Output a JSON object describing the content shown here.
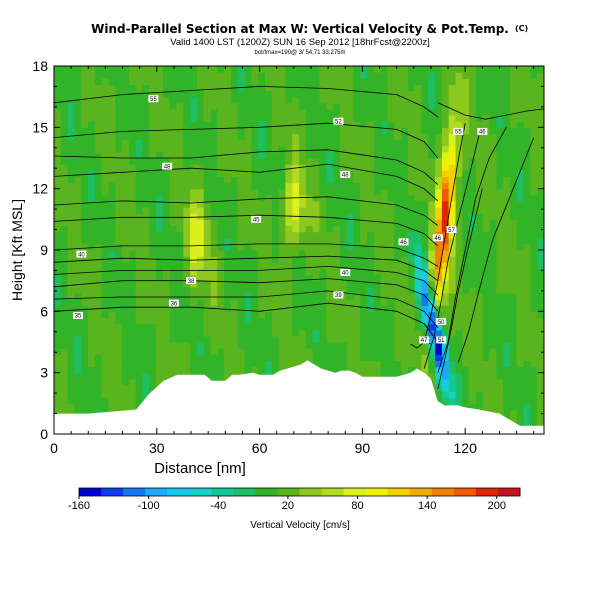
{
  "chart_data": {
    "type": "heatmap",
    "title": "Wind-Parallel Section at Max W: Vertical Velocity & Pot.Temp.",
    "title_mark": "(C)",
    "subtitle": "Valid 1400 LST (1200Z) SUN 16 Sep 2012 [18hrFcst@2200z]",
    "subsubtitle": "bot/tmax=190@ 3/ 54,71 33,275m",
    "xlabel": "Distance [nm]",
    "ylabel": "Height [Kft MSL]",
    "xlim": [
      0,
      143
    ],
    "ylim": [
      0,
      18
    ],
    "xticks": [
      0,
      30,
      60,
      90,
      120
    ],
    "yticks": [
      0,
      3,
      6,
      9,
      12,
      15,
      18
    ],
    "colorbar": {
      "label": "Vertical Velocity [cm/s]",
      "range": [
        -160,
        220
      ],
      "tick_values": [
        -160,
        -100,
        -40,
        20,
        80,
        140,
        200
      ],
      "tick_labels": [
        "-160",
        "-100",
        "-40",
        "20",
        "80",
        "140",
        "200"
      ],
      "colors": [
        "#0000d2",
        "#0a3cf0",
        "#1478f5",
        "#1eaaf5",
        "#14c8f0",
        "#14d2c8",
        "#14c896",
        "#1ebe64",
        "#32b428",
        "#5ab41e",
        "#8cc81e",
        "#b4dc1e",
        "#dcf01e",
        "#f0f000",
        "#f0d200",
        "#f0aa00",
        "#f08200",
        "#f05a00",
        "#e02800",
        "#c8141e"
      ]
    },
    "terrain_profile": {
      "x": [
        0,
        10,
        24,
        26,
        28,
        30,
        32,
        36,
        40,
        44,
        46,
        48,
        50,
        52,
        54,
        58,
        60,
        64,
        66,
        68,
        72,
        74,
        78,
        80,
        82,
        84,
        86,
        88,
        90,
        94,
        100,
        104,
        106,
        108,
        110,
        112,
        114,
        118,
        120,
        124,
        130,
        136,
        143
      ],
      "y": [
        1.0,
        1.0,
        1.2,
        1.6,
        2.0,
        2.3,
        2.6,
        2.9,
        2.9,
        2.9,
        2.6,
        2.6,
        2.6,
        2.9,
        2.9,
        3.0,
        2.9,
        2.9,
        3.1,
        3.2,
        3.4,
        3.6,
        3.2,
        3.1,
        3.0,
        3.1,
        3.1,
        3.0,
        2.8,
        2.8,
        2.8,
        3.0,
        3.2,
        3.0,
        2.7,
        1.6,
        1.4,
        1.4,
        1.3,
        1.2,
        1.0,
        0.4,
        0.4
      ]
    },
    "theta_contours": [
      {
        "label": "35",
        "label_x": 7,
        "label_y": 5.8,
        "x": [
          0,
          20,
          40,
          60,
          80,
          100,
          108,
          112
        ],
        "y": [
          6.0,
          6.2,
          6.2,
          6.0,
          6.4,
          6.0,
          5.4,
          4.5
        ]
      },
      {
        "label": "36",
        "label_x": 35,
        "label_y": 6.4,
        "x": [
          0,
          20,
          40,
          60,
          80,
          100,
          108,
          112
        ],
        "y": [
          6.6,
          6.7,
          6.7,
          6.7,
          7.0,
          6.6,
          6.0,
          5.2
        ]
      },
      {
        "label": "38",
        "label_x": 40,
        "label_y": 7.5,
        "x": [
          0,
          20,
          40,
          60,
          80,
          100,
          108,
          112
        ],
        "y": [
          7.2,
          7.5,
          7.5,
          7.4,
          7.6,
          7.3,
          6.8,
          6.0
        ]
      },
      {
        "label": "39",
        "label_x": 83,
        "label_y": 6.8,
        "x": [
          0,
          20,
          40,
          60,
          80,
          100,
          108,
          112
        ],
        "y": [
          7.8,
          8.0,
          8.0,
          8.0,
          8.2,
          7.9,
          7.5,
          6.8
        ]
      },
      {
        "label": "40",
        "label_x": 85,
        "label_y": 7.9,
        "x": [
          0,
          20,
          40,
          60,
          80,
          100,
          108,
          112
        ],
        "y": [
          8.4,
          8.6,
          8.5,
          8.6,
          8.7,
          8.5,
          8.0,
          7.5
        ]
      },
      {
        "label": "40",
        "label_x": 8,
        "label_y": 8.8,
        "x": [
          0,
          20,
          40,
          60,
          80,
          100,
          108,
          112
        ],
        "y": [
          9.0,
          9.2,
          9.2,
          9.3,
          9.3,
          9.1,
          8.6,
          8.2
        ]
      },
      {
        "label": "45",
        "label_x": 59,
        "label_y": 10.5,
        "x": [
          0,
          20,
          40,
          60,
          80,
          100,
          108,
          112
        ],
        "y": [
          10.4,
          10.6,
          10.6,
          10.7,
          10.6,
          10.3,
          9.8,
          9.2
        ]
      },
      {
        "label": "46",
        "label_x": 102,
        "label_y": 9.4,
        "x": [
          0,
          20,
          40,
          60,
          80,
          100,
          108,
          112
        ],
        "y": [
          11.2,
          11.4,
          11.3,
          11.5,
          11.6,
          11.2,
          10.7,
          10.2
        ]
      },
      {
        "label": "48",
        "label_x": 33,
        "label_y": 13.1,
        "x": [
          0,
          20,
          40,
          60,
          80,
          100,
          108,
          112
        ],
        "y": [
          12.6,
          12.8,
          13.0,
          12.8,
          13.2,
          12.6,
          12.0,
          11.4
        ]
      },
      {
        "label": "48",
        "label_x": 85,
        "label_y": 12.7,
        "x": [
          0,
          20,
          40,
          60,
          80,
          100,
          108,
          112
        ],
        "y": [
          13.6,
          13.5,
          13.5,
          13.8,
          13.9,
          13.4,
          12.8,
          12.2
        ]
      },
      {
        "label": "52",
        "label_x": 83,
        "label_y": 15.3,
        "x": [
          0,
          20,
          40,
          60,
          80,
          100,
          108,
          112
        ],
        "y": [
          14.5,
          14.8,
          14.9,
          15.0,
          15.2,
          14.9,
          14.3,
          13.5
        ]
      },
      {
        "label": "55",
        "label_x": 29,
        "label_y": 16.4,
        "x": [
          0,
          20,
          40,
          60,
          80,
          100,
          108,
          112
        ],
        "y": [
          16.2,
          16.6,
          16.8,
          17.0,
          16.9,
          16.6,
          16.0,
          15.5
        ]
      },
      {
        "label": "46",
        "label_x": 125,
        "label_y": 14.8,
        "x": [
          112,
          116,
          120,
          126,
          132,
          138,
          143
        ],
        "y": [
          16.2,
          15.9,
          15.6,
          15.4,
          15.6,
          15.8,
          15.9
        ]
      },
      {
        "label": "46",
        "label_x": 112,
        "label_y": 9.6,
        "x": [
          108,
          110,
          112,
          114,
          116,
          118,
          120
        ],
        "y": [
          4.5,
          5.8,
          7.5,
          9.5,
          11.5,
          13.4,
          15.2
        ]
      },
      {
        "label": "50",
        "label_x": 113,
        "label_y": 5.5,
        "x": [
          108,
          111,
          113,
          115,
          118,
          121,
          124
        ],
        "y": [
          3.2,
          4.8,
          6.5,
          8.5,
          10.5,
          12.5,
          14.6
        ]
      },
      {
        "label": "55",
        "label_x": 118,
        "label_y": 14.8,
        "x": [
          112,
          115,
          117,
          120,
          123,
          127,
          132
        ],
        "y": [
          3.0,
          4.5,
          6.5,
          9.0,
          11.5,
          13.5,
          15.0
        ]
      },
      {
        "label": "51",
        "label_x": 113,
        "label_y": 4.6,
        "x": [
          104,
          106,
          108,
          110
        ],
        "y": [
          4.4,
          4.2,
          4.5,
          4.4
        ]
      },
      {
        "label": "57",
        "label_x": 116,
        "label_y": 10.0,
        "x": [
          118,
          121,
          124,
          128,
          134,
          140
        ],
        "y": [
          3.5,
          5.0,
          7.0,
          9.5,
          12.0,
          14.5
        ]
      },
      {
        "label": "47",
        "label_x": 108,
        "label_y": 4.6,
        "x": [
          112,
          114,
          116,
          118,
          121,
          125
        ],
        "y": [
          2.2,
          3.6,
          5.2,
          7.0,
          9.2,
          12.0
        ]
      }
    ],
    "w_features": [
      {
        "name": "updraft core",
        "x": 114,
        "y": 10.5,
        "value": 200
      },
      {
        "name": "downdraft core",
        "x": 111,
        "y": 5.0,
        "value": -160
      },
      {
        "name": "weak updraft band",
        "x": 42,
        "y": 9.5,
        "value": 80
      },
      {
        "name": "weak updraft band",
        "x": 70,
        "y": 11.0,
        "value": 80
      }
    ]
  }
}
